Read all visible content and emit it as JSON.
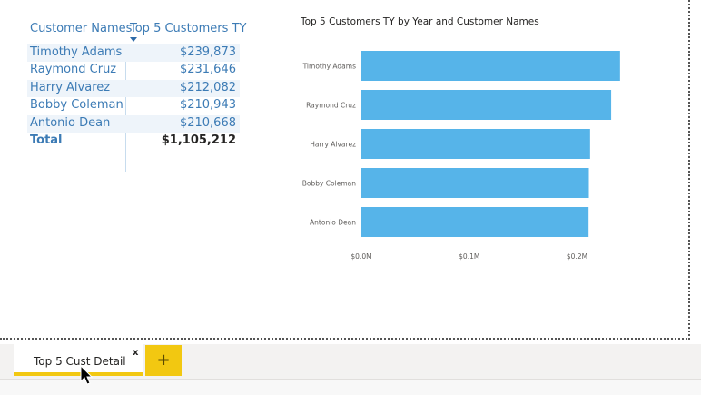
{
  "table": {
    "headers": {
      "name": "Customer Names",
      "value": "Top 5 Customers TY"
    },
    "rows": [
      {
        "name": "Timothy Adams",
        "value": "$239,873"
      },
      {
        "name": "Raymond Cruz",
        "value": "$231,646"
      },
      {
        "name": "Harry Alvarez",
        "value": "$212,082"
      },
      {
        "name": "Bobby Coleman",
        "value": "$210,943"
      },
      {
        "name": "Antonio Dean",
        "value": "$210,668"
      }
    ],
    "total": {
      "name": "Total",
      "value": "$1,105,212"
    }
  },
  "chart_data": {
    "type": "bar",
    "orientation": "horizontal",
    "title": "Top 5 Customers TY by Year and Customer Names",
    "categories": [
      "Timothy Adams",
      "Raymond Cruz",
      "Harry Alvarez",
      "Bobby Coleman",
      "Antonio Dean"
    ],
    "values": [
      239873,
      231646,
      212082,
      210943,
      210668
    ],
    "xticks": [
      "$0.0M",
      "$0.1M",
      "$0.2M"
    ],
    "xlim": [
      0,
      0.24
    ],
    "bar_color": "#56b4e9",
    "grid": false
  },
  "tabs": {
    "active_label": "Top 5 Cust Detail",
    "close_glyph": "x",
    "add_glyph": "+",
    "accent": "#f2c811"
  }
}
